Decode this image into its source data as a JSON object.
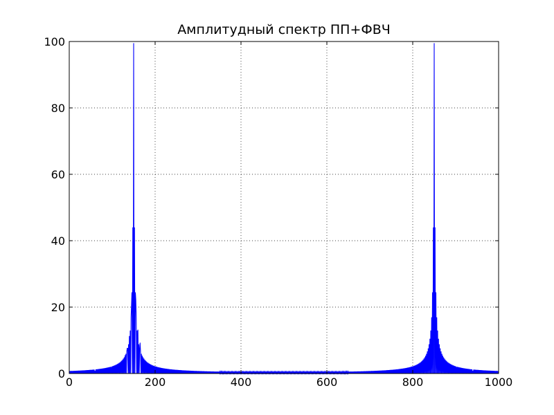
{
  "chart_data": {
    "type": "line",
    "title": "Амплитудный спектр ПП+ФВЧ",
    "xlabel": "",
    "ylabel": "",
    "xlim": [
      0,
      1000
    ],
    "ylim": [
      0,
      100
    ],
    "xticks": [
      "0",
      "200",
      "400",
      "600",
      "800",
      "1000"
    ],
    "yticks": [
      "0",
      "20",
      "40",
      "60",
      "80",
      "100"
    ],
    "grid": true,
    "line_color": "#0000ff",
    "series": [
      {
        "samples": 1000,
        "peaks": [
          {
            "x": 150,
            "y": 99.5
          },
          {
            "x": 850,
            "y": 99.5
          }
        ],
        "side_lobes": [
          {
            "x": 145,
            "y": 20.5
          },
          {
            "x": 140,
            "y": 11.3
          },
          {
            "x": 135,
            "y": 7.6
          },
          {
            "x": 130,
            "y": 5.5
          },
          {
            "x": 155,
            "y": 22.2
          },
          {
            "x": 160,
            "y": 13.2
          },
          {
            "x": 165,
            "y": 9.3
          },
          {
            "x": 60,
            "y": 0.8
          },
          {
            "x": 940,
            "y": 0.8
          }
        ],
        "floor_level": 0.5
      }
    ]
  }
}
